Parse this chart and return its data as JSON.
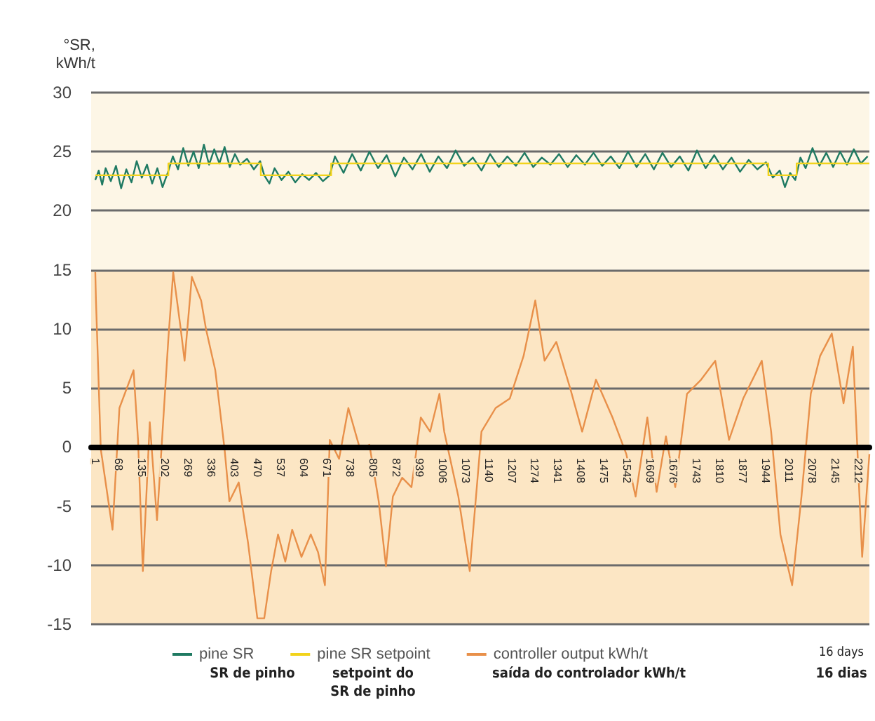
{
  "chart_data": {
    "type": "line",
    "ylabel": "°SR,\nkWh/t",
    "xlim": [
      -12,
      2245
    ],
    "ylim": [
      -15,
      30
    ],
    "xticks": [
      1,
      68,
      135,
      202,
      269,
      336,
      403,
      470,
      537,
      604,
      671,
      738,
      805,
      872,
      939,
      1006,
      1073,
      1140,
      1207,
      1274,
      1341,
      1408,
      1475,
      1542,
      1609,
      1676,
      1743,
      1810,
      1877,
      1944,
      2011,
      2078,
      2145,
      2212
    ],
    "yticks": [
      -15,
      -10,
      -5,
      0,
      5,
      10,
      15,
      20,
      25,
      30
    ],
    "grid": "y",
    "legend": "bottom",
    "marker": "none",
    "bands": [
      {
        "axis": "y",
        "from": -15,
        "to": 15,
        "color": "#fce6c4"
      },
      {
        "axis": "y",
        "from": 15,
        "to": 30,
        "color": "#fdf6e6"
      }
    ],
    "annotations": [
      "16 days",
      "SR de pinho",
      "setpoint do\nSR de pinho",
      "saída do controlador kWh/t",
      "16 dias"
    ],
    "series": [
      {
        "name": "pine SR",
        "color": "#1f7a62",
        "x": [
          0,
          10,
          20,
          30,
          45,
          60,
          75,
          90,
          105,
          120,
          135,
          150,
          165,
          180,
          195,
          210,
          225,
          240,
          255,
          270,
          285,
          300,
          315,
          330,
          345,
          360,
          375,
          390,
          405,
          420,
          440,
          460,
          478,
          490,
          505,
          520,
          540,
          560,
          580,
          600,
          620,
          640,
          660,
          680,
          695,
          720,
          745,
          770,
          795,
          820,
          845,
          870,
          895,
          920,
          945,
          970,
          995,
          1020,
          1045,
          1070,
          1095,
          1120,
          1145,
          1170,
          1195,
          1220,
          1245,
          1270,
          1295,
          1320,
          1345,
          1370,
          1395,
          1420,
          1445,
          1470,
          1495,
          1520,
          1545,
          1570,
          1595,
          1620,
          1645,
          1670,
          1695,
          1720,
          1745,
          1770,
          1795,
          1820,
          1845,
          1870,
          1895,
          1920,
          1945,
          1965,
          1985,
          2000,
          2015,
          2030,
          2045,
          2060,
          2080,
          2100,
          2120,
          2140,
          2160,
          2180,
          2200,
          2220,
          2240
        ],
        "values": [
          22.6,
          23.4,
          22.2,
          23.6,
          22.5,
          23.8,
          21.9,
          23.5,
          22.4,
          24.2,
          22.8,
          23.9,
          22.3,
          23.6,
          22.0,
          23.2,
          24.6,
          23.5,
          25.3,
          23.8,
          25.0,
          23.6,
          25.6,
          23.9,
          25.2,
          24.0,
          25.4,
          23.7,
          24.8,
          23.9,
          24.4,
          23.5,
          24.2,
          23.0,
          22.3,
          23.6,
          22.6,
          23.3,
          22.4,
          23.1,
          22.6,
          23.2,
          22.5,
          23.0,
          24.6,
          23.2,
          24.8,
          23.4,
          25.0,
          23.6,
          24.7,
          22.9,
          24.5,
          23.5,
          24.8,
          23.3,
          24.6,
          23.6,
          25.1,
          23.8,
          24.5,
          23.4,
          24.8,
          23.7,
          24.6,
          23.8,
          24.9,
          23.7,
          24.5,
          23.9,
          24.8,
          23.7,
          24.7,
          23.9,
          24.9,
          23.8,
          24.6,
          23.6,
          25.0,
          23.7,
          24.8,
          23.5,
          24.9,
          23.7,
          24.6,
          23.4,
          25.1,
          23.6,
          24.7,
          23.5,
          24.5,
          23.3,
          24.3,
          23.5,
          24.1,
          22.8,
          23.4,
          22.0,
          23.2,
          22.6,
          24.5,
          23.6,
          25.3,
          23.8,
          24.9,
          23.7,
          25.0,
          23.9,
          25.2,
          24.0,
          24.6
        ]
      },
      {
        "name": "pine SR setpoint",
        "color": "#f2d31b",
        "x": [
          0,
          212,
          212,
          480,
          480,
          684,
          684,
          1952,
          1952,
          2034,
          2034,
          2245
        ],
        "values": [
          23,
          23,
          24,
          24,
          23,
          23,
          24,
          24,
          23,
          23,
          24,
          24
        ]
      },
      {
        "name": "controller output kWh/t",
        "color": "#e8904a",
        "x": [
          0,
          2,
          16,
          50,
          70,
          111,
          124,
          138,
          158,
          179,
          212,
          226,
          246,
          259,
          280,
          307,
          321,
          348,
          375,
          389,
          416,
          443,
          470,
          490,
          510,
          530,
          551,
          571,
          598,
          625,
          646,
          666,
          680,
          707,
          734,
          768,
          795,
          822,
          843,
          863,
          890,
          917,
          944,
          971,
          998,
          1012,
          1053,
          1086,
          1120,
          1161,
          1202,
          1242,
          1276,
          1303,
          1337,
          1378,
          1412,
          1452,
          1500,
          1540,
          1567,
          1601,
          1628,
          1655,
          1682,
          1716,
          1757,
          1798,
          1838,
          1879,
          1933,
          1960,
          1987,
          2021,
          2048,
          2075,
          2102,
          2136,
          2170,
          2197,
          2224,
          2245
        ],
        "values": [
          14.8,
          12.4,
          -0.2,
          -7,
          3.3,
          6.5,
          0.6,
          -10.5,
          2.1,
          -6.2,
          9.2,
          14.8,
          10.4,
          7.3,
          14.4,
          12.4,
          10,
          6.5,
          -0.2,
          -4.6,
          -3,
          -8.1,
          -14.5,
          -14.5,
          -10.5,
          -7.4,
          -9.7,
          -7,
          -9.3,
          -7.4,
          -8.9,
          -11.7,
          0.6,
          -1,
          3.3,
          -0.2,
          0.2,
          -4.6,
          -10.1,
          -4.2,
          -2.6,
          -3.4,
          2.5,
          1.3,
          4.5,
          1.3,
          -4.2,
          -10.5,
          1.3,
          3.3,
          4.1,
          7.7,
          12.4,
          7.3,
          8.9,
          4.9,
          1.3,
          5.7,
          2.5,
          -0.6,
          -4.2,
          2.5,
          -3.8,
          0.9,
          -3.4,
          4.5,
          5.7,
          7.3,
          0.6,
          4.1,
          7.3,
          1.3,
          -7.4,
          -11.7,
          -4.2,
          4.5,
          7.7,
          9.6,
          3.7,
          8.5,
          -9.3,
          -0.6
        ]
      }
    ]
  }
}
